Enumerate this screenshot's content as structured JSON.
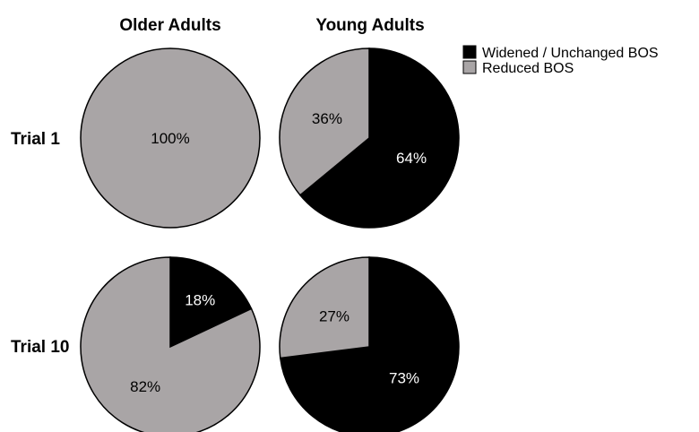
{
  "chart_data": {
    "type": "pie",
    "columns": [
      "Older Adults",
      "Young Adults"
    ],
    "rows": [
      "Trial 1",
      "Trial 10"
    ],
    "legend": {
      "placement": "top-right",
      "entries": [
        {
          "label": "Widened / Unchanged BOS",
          "color": "#000000"
        },
        {
          "label": "Reduced BOS",
          "color": "#a9a5a6"
        }
      ]
    },
    "colors": {
      "widened": "#000000",
      "reduced": "#a9a5a6",
      "stroke": "#000000"
    },
    "pies": [
      {
        "row": "Trial 1",
        "column": "Older Adults",
        "slices": [
          {
            "series": "Widened / Unchanged BOS",
            "value": 0,
            "label": ""
          },
          {
            "series": "Reduced BOS",
            "value": 100,
            "label": "100%"
          }
        ]
      },
      {
        "row": "Trial 1",
        "column": "Young Adults",
        "slices": [
          {
            "series": "Widened / Unchanged BOS",
            "value": 64,
            "label": "64%"
          },
          {
            "series": "Reduced BOS",
            "value": 36,
            "label": "36%"
          }
        ]
      },
      {
        "row": "Trial 10",
        "column": "Older Adults",
        "slices": [
          {
            "series": "Widened / Unchanged BOS",
            "value": 18,
            "label": "18%"
          },
          {
            "series": "Reduced BOS",
            "value": 82,
            "label": "82%"
          }
        ]
      },
      {
        "row": "Trial 10",
        "column": "Young Adults",
        "slices": [
          {
            "series": "Widened / Unchanged BOS",
            "value": 73,
            "label": "73%"
          },
          {
            "series": "Reduced BOS",
            "value": 27,
            "label": "27%"
          }
        ]
      }
    ]
  }
}
